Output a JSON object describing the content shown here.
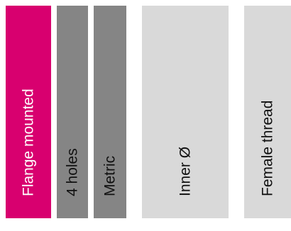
{
  "tiles": [
    {
      "label": "Flange mounted",
      "bg": "#d8006f",
      "fg": "#ffffff"
    },
    {
      "label": "4 holes",
      "bg": "#858585",
      "fg": "#111111"
    },
    {
      "label": "Metric",
      "bg": "#858585",
      "fg": "#111111"
    },
    {
      "label": "Inner Ø",
      "bg": "#d9d9d9",
      "fg": "#111111"
    },
    {
      "label": "Female thread",
      "bg": "#d9d9d9",
      "fg": "#111111"
    }
  ]
}
